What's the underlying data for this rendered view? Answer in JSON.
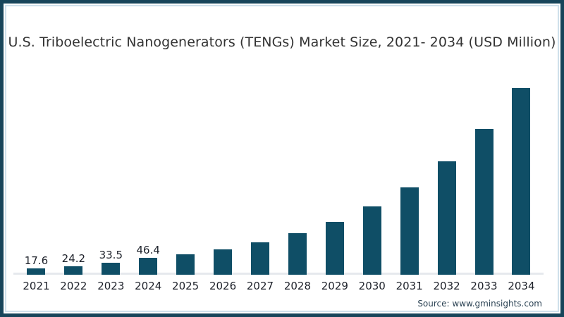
{
  "title": "U.S. Triboelectric Nanogenerators (TENGs) Market Size, 2021- 2034 (USD Million)",
  "source": "Source: www.gminsights.com",
  "colors": {
    "bar": "#0f4e66",
    "frame_border": "#17455a",
    "inner_accent_line": "#cfe0eb",
    "axis_baseline": "#e6e9ed",
    "title_text": "#333333",
    "label_text": "#1d212a",
    "source_text": "#2c4354"
  },
  "chart_data": {
    "type": "bar",
    "categories": [
      "2021",
      "2022",
      "2023",
      "2024",
      "2025",
      "2026",
      "2027",
      "2028",
      "2029",
      "2030",
      "2031",
      "2032",
      "2033",
      "2034"
    ],
    "values": [
      17.6,
      24.2,
      33.5,
      46.4,
      57,
      70,
      90,
      115,
      148,
      190,
      243,
      315,
      405,
      520
    ],
    "data_labels": [
      "17.6",
      "24.2",
      "33.5",
      "46.4",
      "",
      "",
      "",
      "",
      "",
      "",
      "",
      "",
      "",
      ""
    ],
    "title": "U.S. Triboelectric Nanogenerators (TENGs) Market Size, 2021- 2034 (USD Million)",
    "xlabel": "",
    "ylabel": "",
    "ylim": [
      0,
      560
    ],
    "grid": false,
    "legend": false,
    "y_axis_shown": false,
    "baseline_shown": true
  }
}
